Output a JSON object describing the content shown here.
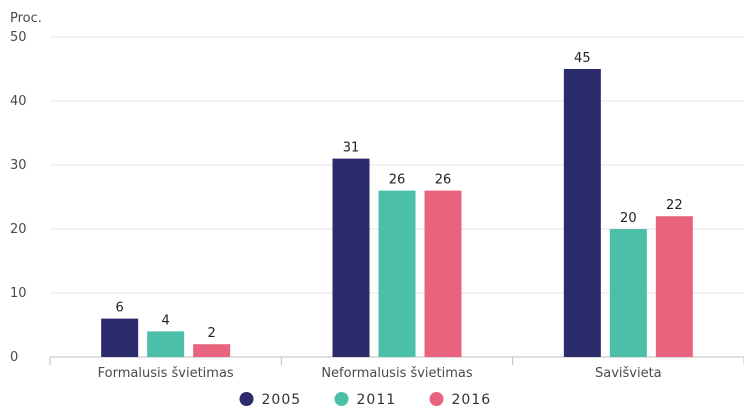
{
  "chart_data": {
    "type": "bar",
    "y_unit_label": "Proc.",
    "categories": [
      "Formalusis švietimas",
      "Neformalusis švietimas",
      "Savišvieta"
    ],
    "series": [
      {
        "name": "2005",
        "color": "#2b2b6b",
        "values": [
          6,
          31,
          45
        ]
      },
      {
        "name": "2011",
        "color": "#4bbfa8",
        "values": [
          4,
          26,
          20
        ]
      },
      {
        "name": "2016",
        "color": "#e8637e",
        "values": [
          2,
          26,
          22
        ]
      }
    ],
    "ylim": [
      0,
      50
    ],
    "yticks": [
      0,
      10,
      20,
      30,
      40,
      50
    ],
    "grid": true,
    "data_labels": true,
    "legend_position": "bottom-center"
  }
}
